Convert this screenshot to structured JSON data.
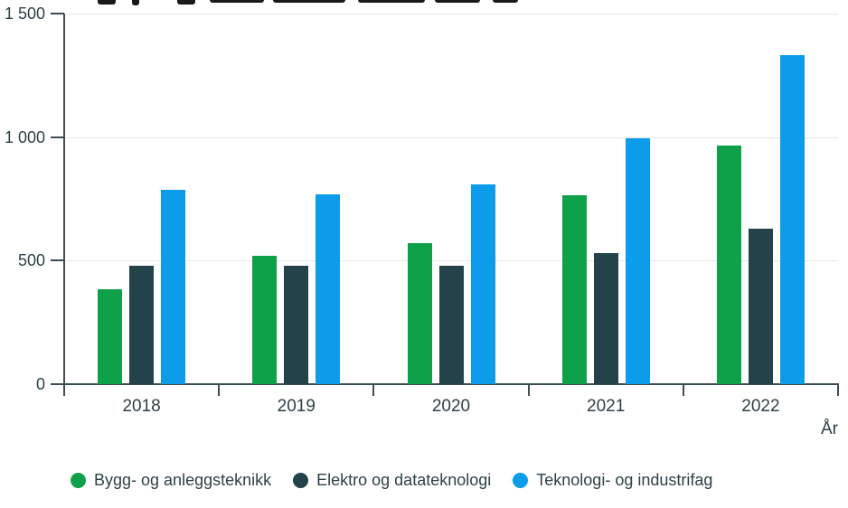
{
  "chart_data": {
    "type": "bar",
    "title": "",
    "xlabel": "År",
    "ylabel": "",
    "ylim": [
      0,
      1500
    ],
    "grid": true,
    "legend_position": "bottom",
    "categories": [
      "2018",
      "2019",
      "2020",
      "2021",
      "2022"
    ],
    "yticks": [
      {
        "value": 0,
        "label": "0"
      },
      {
        "value": 500,
        "label": "500"
      },
      {
        "value": 1000,
        "label": "1 000"
      },
      {
        "value": 1500,
        "label": "1 500"
      }
    ],
    "series": [
      {
        "name": "Bygg- og anleggsteknikk",
        "color": "#0fa14a",
        "values": [
          385,
          520,
          570,
          765,
          965
        ]
      },
      {
        "name": "Elektro og datateknologi",
        "color": "#24424a",
        "values": [
          480,
          480,
          480,
          530,
          630
        ]
      },
      {
        "name": "Teknologi- og industrifag",
        "color": "#0d9ce9",
        "values": [
          785,
          770,
          810,
          995,
          1330
        ]
      }
    ]
  },
  "colors": {
    "axis": "#3d4d53",
    "grid": "#e6e6e6",
    "text": "#2e4147",
    "background": "#ffffff"
  }
}
